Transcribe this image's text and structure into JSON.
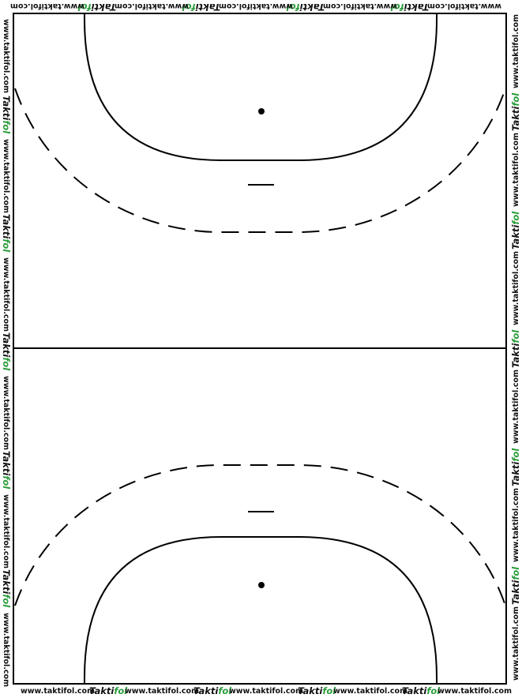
{
  "watermark": {
    "url_text": "www.taktifol.com",
    "logo_part1": "Takti",
    "logo_part2": "fol"
  },
  "colors": {
    "background": "#ffffff",
    "lines": "#000000",
    "brand_green": "#2a9d3a",
    "text": "#111111"
  },
  "court": {
    "sport": "handball",
    "orientation": "vertical"
  }
}
